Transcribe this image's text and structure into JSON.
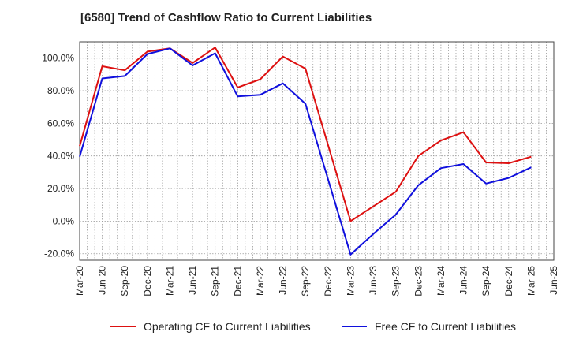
{
  "chart_data": {
    "type": "line",
    "title": "[6580]  Trend of Cashflow Ratio to Current Liabilities",
    "xlabel": "",
    "ylabel": "",
    "x": [
      "Mar-20",
      "Jun-20",
      "Sep-20",
      "Dec-20",
      "Mar-21",
      "Jun-21",
      "Sep-21",
      "Dec-21",
      "Mar-22",
      "Jun-22",
      "Sep-22",
      "Dec-22",
      "Mar-23",
      "Jun-23",
      "Sep-23",
      "Dec-23",
      "Mar-24",
      "Jun-24",
      "Sep-24",
      "Dec-24",
      "Mar-25",
      "Jun-25"
    ],
    "x_ticks": [
      "Mar-20",
      "Jun-20",
      "Sep-20",
      "Dec-20",
      "Mar-21",
      "Jun-21",
      "Sep-21",
      "Dec-21",
      "Mar-22",
      "Jun-22",
      "Sep-22",
      "Dec-22",
      "Mar-23",
      "Jun-23",
      "Sep-23",
      "Dec-23",
      "Mar-24",
      "Jun-24",
      "Sep-24",
      "Dec-24",
      "Mar-25",
      "Jun-25"
    ],
    "y_ticks": [
      -20,
      0,
      20,
      40,
      60,
      80,
      100
    ],
    "y_tick_labels": [
      "-20.0%",
      "0.0%",
      "20.0%",
      "40.0%",
      "60.0%",
      "80.0%",
      "100.0%"
    ],
    "ylim": [
      -24,
      110
    ],
    "grid": true,
    "legend_position": "bottom",
    "series": [
      {
        "name": "Operating CF to Current Liabilities",
        "color": "#dd1111",
        "values": [
          46,
          95,
          92.5,
          104,
          106,
          97,
          106.5,
          82,
          87,
          101,
          93.5,
          null,
          0,
          9,
          18,
          40,
          49.5,
          54.5,
          36,
          35.5,
          39.5,
          null
        ]
      },
      {
        "name": "Free CF to Current Liabilities",
        "color": "#1010dd",
        "values": [
          39.5,
          87.5,
          89,
          102.5,
          106,
          95.5,
          103,
          76.5,
          77.5,
          84.5,
          72,
          null,
          -20.5,
          -8,
          4,
          22,
          32.5,
          35,
          23,
          26.5,
          33,
          null
        ]
      }
    ]
  }
}
